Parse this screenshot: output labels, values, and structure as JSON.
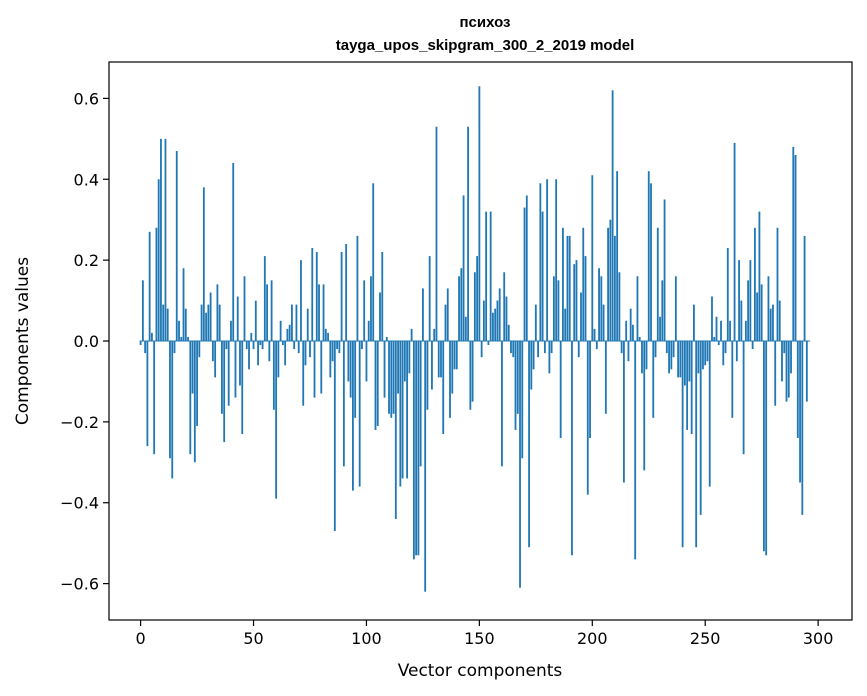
{
  "chart_data": {
    "type": "bar",
    "title_line1": "психоз",
    "title_line2": "tayga_upos_skipgram_300_2_2019 model",
    "xlabel": "Vector components",
    "ylabel": "Components values",
    "xlim": [
      -14,
      315
    ],
    "ylim": [
      -0.69,
      0.69
    ],
    "xticks": [
      0,
      50,
      100,
      150,
      200,
      250,
      300
    ],
    "xtick_labels": [
      "0",
      "50",
      "100",
      "150",
      "200",
      "250",
      "300"
    ],
    "yticks": [
      -0.6,
      -0.4,
      -0.2,
      0.0,
      0.2,
      0.4,
      0.6
    ],
    "ytick_labels": [
      "−0.6",
      "−0.4",
      "−0.2",
      "0.0",
      "0.2",
      "0.4",
      "0.6"
    ],
    "bar_color": "#1f77b4",
    "values": [
      -0.01,
      0.15,
      -0.03,
      -0.26,
      0.27,
      0.02,
      -0.28,
      0.28,
      0.4,
      0.5,
      0.09,
      0.5,
      0.08,
      -0.29,
      -0.34,
      -0.03,
      0.47,
      0.05,
      0.01,
      0.18,
      0.08,
      0.01,
      -0.28,
      -0.13,
      -0.3,
      -0.21,
      -0.04,
      0.09,
      0.38,
      0.07,
      0.09,
      0.12,
      -0.05,
      -0.09,
      0.14,
      0.09,
      -0.18,
      -0.25,
      -0.02,
      -0.16,
      0.05,
      0.44,
      -0.14,
      0.11,
      -0.11,
      -0.23,
      0.16,
      -0.02,
      -0.07,
      0.02,
      -0.02,
      0.1,
      -0.06,
      -0.01,
      -0.02,
      0.21,
      0.14,
      -0.05,
      0.15,
      -0.17,
      -0.39,
      -0.09,
      0.05,
      -0.01,
      -0.06,
      0.03,
      0.04,
      0.09,
      -0.02,
      0.09,
      -0.03,
      0.2,
      -0.16,
      -0.06,
      0.08,
      -0.04,
      0.23,
      -0.14,
      0.22,
      0.14,
      -0.13,
      0.14,
      0.03,
      0.02,
      -0.09,
      -0.05,
      -0.47,
      -0.02,
      -0.03,
      0.22,
      -0.31,
      0.24,
      -0.1,
      -0.14,
      -0.37,
      -0.19,
      0.26,
      -0.36,
      -0.02,
      0.15,
      -0.1,
      0.05,
      0.16,
      0.39,
      -0.22,
      -0.21,
      0.12,
      0.22,
      -0.14,
      0.01,
      -0.18,
      -0.19,
      -0.18,
      -0.44,
      -0.13,
      -0.36,
      -0.34,
      -0.1,
      -0.34,
      -0.08,
      0.03,
      -0.54,
      -0.53,
      -0.53,
      -0.31,
      0.13,
      -0.62,
      -0.17,
      0.21,
      -0.12,
      0.03,
      0.53,
      -0.09,
      -0.09,
      -0.23,
      0.09,
      0.13,
      -0.19,
      -0.13,
      -0.07,
      -0.07,
      0.16,
      0.18,
      0.36,
      0.06,
      0.53,
      -0.17,
      -0.15,
      0.17,
      0.21,
      0.63,
      -0.04,
      0.1,
      0.32,
      -0.01,
      0.32,
      0.07,
      0.08,
      0.1,
      0.13,
      -0.31,
      0.17,
      0.11,
      0.04,
      -0.03,
      -0.04,
      -0.22,
      -0.18,
      -0.61,
      -0.29,
      0.33,
      0.36,
      -0.51,
      -0.12,
      -0.07,
      0.09,
      -0.04,
      0.39,
      0.32,
      -0.03,
      0.4,
      -0.08,
      -0.03,
      0.16,
      0.4,
      0.15,
      -0.24,
      0.28,
      0.08,
      0.26,
      0.26,
      -0.53,
      0.19,
      0.2,
      -0.04,
      0.12,
      0.28,
      0.21,
      -0.38,
      -0.24,
      0.41,
      0.03,
      -0.02,
      0.18,
      0.16,
      0.09,
      -0.18,
      0.28,
      0.3,
      0.62,
      0.26,
      0.42,
      0.17,
      -0.03,
      -0.35,
      0.05,
      -0.05,
      0.08,
      0.04,
      -0.54,
      0.16,
      0.01,
      -0.08,
      -0.32,
      -0.07,
      0.42,
      0.39,
      -0.19,
      -0.04,
      0.28,
      0.06,
      0.15,
      0.35,
      -0.03,
      -0.08,
      -0.07,
      -0.04,
      0.16,
      -0.09,
      -0.09,
      -0.51,
      -0.11,
      -0.22,
      -0.1,
      -0.23,
      0.09,
      -0.51,
      -0.08,
      -0.43,
      -0.07,
      -0.06,
      -0.05,
      -0.36,
      0.11,
      0.01,
      0.06,
      -0.01,
      0.05,
      -0.06,
      -0.03,
      0.23,
      0.05,
      -0.19,
      0.49,
      -0.05,
      0.2,
      0.1,
      -0.28,
      0.05,
      0.15,
      0.2,
      -0.02,
      0.28,
      0.12,
      0.32,
      0.14,
      -0.52,
      -0.53,
      0.16,
      0.08,
      0.09,
      -0.16,
      0.28,
      0.1,
      -0.1,
      -0.03,
      -0.15,
      -0.14,
      -0.08,
      0.48,
      0.46,
      -0.24,
      -0.35,
      -0.43,
      0.26,
      -0.15,
      0.0
    ]
  }
}
